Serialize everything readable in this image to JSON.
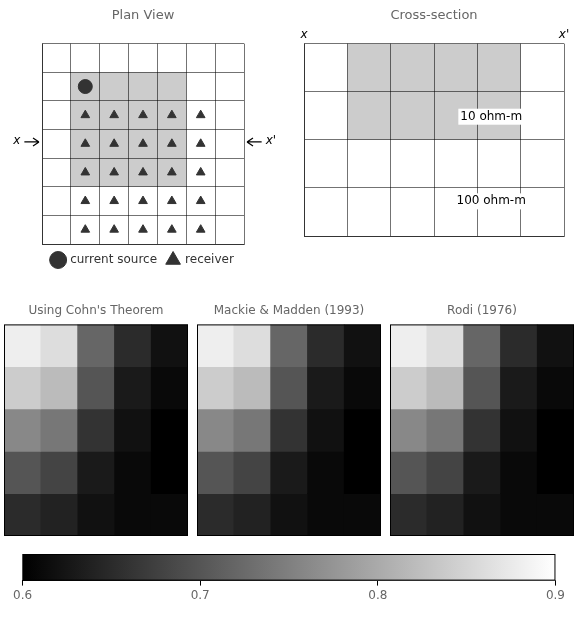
{
  "chart_data": [
    {
      "type": "scatter",
      "title": "Plan View",
      "xlim": [
        0,
        7
      ],
      "ylim": [
        0,
        7
      ],
      "xticks": [
        0,
        1,
        2,
        3,
        4,
        5,
        6,
        7
      ],
      "yticks": [
        0,
        1,
        2,
        3,
        4,
        5,
        6,
        7
      ],
      "grid": true,
      "tick_labels": false,
      "legend": "bottom",
      "series": [
        {
          "type": "rect",
          "color": "#cccccc",
          "x": [
            1,
            5
          ],
          "values": [
            2,
            6
          ]
        },
        {
          "name": "current source",
          "marker": "circle",
          "color": "#333333",
          "x": [
            1.5
          ],
          "values": [
            5.5
          ]
        },
        {
          "name": "receiver",
          "marker": "triangle",
          "color": "#333333",
          "x": [
            1.5,
            2.5,
            3.5,
            4.5,
            5.5,
            1.5,
            2.5,
            3.5,
            4.5,
            5.5,
            1.5,
            2.5,
            3.5,
            4.5,
            5.5,
            1.5,
            2.5,
            3.5,
            4.5,
            5.5,
            1.5,
            2.5,
            3.5,
            4.5,
            5.5
          ],
          "values": [
            4.5,
            4.5,
            4.5,
            4.5,
            4.5,
            3.5,
            3.5,
            3.5,
            3.5,
            3.5,
            2.5,
            2.5,
            2.5,
            2.5,
            2.5,
            1.5,
            1.5,
            1.5,
            1.5,
            1.5,
            0.5,
            0.5,
            0.5,
            0.5,
            0.5
          ]
        }
      ],
      "annotations": [
        {
          "text": "x",
          "x": -0.75,
          "y": 3.6
        },
        {
          "text": "x'",
          "x": 7.75,
          "y": 3.6
        }
      ]
    },
    {
      "type": "scatter",
      "title": "Cross-section",
      "xlim": [
        0,
        6
      ],
      "ylim": [
        0,
        4
      ],
      "xticks": [
        0,
        1,
        2,
        3,
        4,
        5,
        6
      ],
      "yticks": [
        0,
        1,
        2,
        3,
        4
      ],
      "grid": true,
      "tick_labels": false,
      "series": [
        {
          "type": "rect",
          "color": "#cccccc",
          "x": [
            1,
            5
          ],
          "values": [
            2,
            4
          ]
        }
      ],
      "annotations": [
        {
          "text": "x",
          "x": 0,
          "y": 4.05
        },
        {
          "text": "x'",
          "x": 6,
          "y": 4.05
        },
        {
          "text": "10 ohm-m",
          "x": 4.32,
          "y": 2.48
        },
        {
          "text": "100 ohm-m",
          "x": 4.32,
          "y": 0.72
        }
      ]
    },
    {
      "type": "heatmap",
      "title": "Using Cohn's Theorem",
      "colorbar_lim": [
        0.6,
        0.9
      ],
      "values": [
        [
          0.88,
          0.86,
          0.72,
          0.65,
          0.62
        ],
        [
          0.84,
          0.82,
          0.7,
          0.63,
          0.61
        ],
        [
          0.76,
          0.74,
          0.66,
          0.62,
          0.6
        ],
        [
          0.7,
          0.68,
          0.63,
          0.61,
          0.6
        ],
        [
          0.65,
          0.64,
          0.62,
          0.61,
          0.61
        ]
      ]
    },
    {
      "type": "heatmap",
      "title": "Mackie & Madden (1993)",
      "colorbar_lim": [
        0.6,
        0.9
      ],
      "values": [
        [
          0.88,
          0.86,
          0.72,
          0.65,
          0.62
        ],
        [
          0.84,
          0.82,
          0.7,
          0.63,
          0.61
        ],
        [
          0.76,
          0.74,
          0.66,
          0.62,
          0.6
        ],
        [
          0.7,
          0.68,
          0.63,
          0.61,
          0.6
        ],
        [
          0.65,
          0.64,
          0.62,
          0.61,
          0.61
        ]
      ]
    },
    {
      "type": "heatmap",
      "title": "Rodi (1976)",
      "colorbar_lim": [
        0.6,
        0.9
      ],
      "values": [
        [
          0.88,
          0.86,
          0.72,
          0.65,
          0.62
        ],
        [
          0.84,
          0.82,
          0.7,
          0.63,
          0.61
        ],
        [
          0.76,
          0.74,
          0.66,
          0.62,
          0.6
        ],
        [
          0.7,
          0.68,
          0.63,
          0.61,
          0.6
        ],
        [
          0.65,
          0.64,
          0.62,
          0.61,
          0.61
        ]
      ]
    },
    {
      "type": "colorbar",
      "xlim": [
        0.6,
        0.9
      ],
      "xticks": [
        0.6,
        0.7,
        0.8,
        0.9
      ]
    }
  ]
}
